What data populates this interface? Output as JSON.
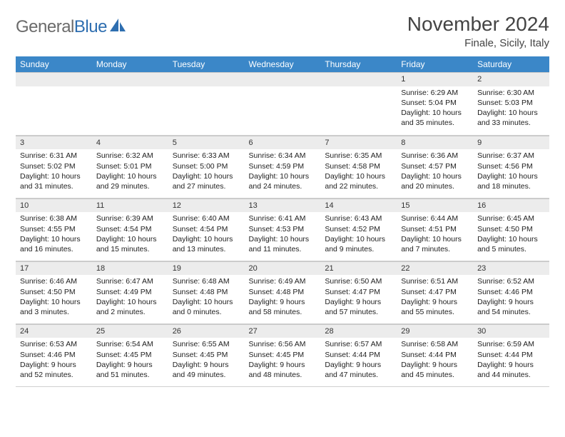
{
  "logo": {
    "text1": "General",
    "text2": "Blue",
    "sail_color": "#2e6eb0"
  },
  "title": "November 2024",
  "subtitle": "Finale, Sicily, Italy",
  "header_bg": "#3b87c8",
  "daynum_bg": "#ececec",
  "font_family": "Arial",
  "cell_fontsize": 10.5,
  "weekdays": [
    "Sunday",
    "Monday",
    "Tuesday",
    "Wednesday",
    "Thursday",
    "Friday",
    "Saturday"
  ],
  "weeks": [
    [
      null,
      null,
      null,
      null,
      null,
      {
        "d": "1",
        "sr": "6:29 AM",
        "ss": "5:04 PM",
        "dl": "10 hours and 35 minutes."
      },
      {
        "d": "2",
        "sr": "6:30 AM",
        "ss": "5:03 PM",
        "dl": "10 hours and 33 minutes."
      }
    ],
    [
      {
        "d": "3",
        "sr": "6:31 AM",
        "ss": "5:02 PM",
        "dl": "10 hours and 31 minutes."
      },
      {
        "d": "4",
        "sr": "6:32 AM",
        "ss": "5:01 PM",
        "dl": "10 hours and 29 minutes."
      },
      {
        "d": "5",
        "sr": "6:33 AM",
        "ss": "5:00 PM",
        "dl": "10 hours and 27 minutes."
      },
      {
        "d": "6",
        "sr": "6:34 AM",
        "ss": "4:59 PM",
        "dl": "10 hours and 24 minutes."
      },
      {
        "d": "7",
        "sr": "6:35 AM",
        "ss": "4:58 PM",
        "dl": "10 hours and 22 minutes."
      },
      {
        "d": "8",
        "sr": "6:36 AM",
        "ss": "4:57 PM",
        "dl": "10 hours and 20 minutes."
      },
      {
        "d": "9",
        "sr": "6:37 AM",
        "ss": "4:56 PM",
        "dl": "10 hours and 18 minutes."
      }
    ],
    [
      {
        "d": "10",
        "sr": "6:38 AM",
        "ss": "4:55 PM",
        "dl": "10 hours and 16 minutes."
      },
      {
        "d": "11",
        "sr": "6:39 AM",
        "ss": "4:54 PM",
        "dl": "10 hours and 15 minutes."
      },
      {
        "d": "12",
        "sr": "6:40 AM",
        "ss": "4:54 PM",
        "dl": "10 hours and 13 minutes."
      },
      {
        "d": "13",
        "sr": "6:41 AM",
        "ss": "4:53 PM",
        "dl": "10 hours and 11 minutes."
      },
      {
        "d": "14",
        "sr": "6:43 AM",
        "ss": "4:52 PM",
        "dl": "10 hours and 9 minutes."
      },
      {
        "d": "15",
        "sr": "6:44 AM",
        "ss": "4:51 PM",
        "dl": "10 hours and 7 minutes."
      },
      {
        "d": "16",
        "sr": "6:45 AM",
        "ss": "4:50 PM",
        "dl": "10 hours and 5 minutes."
      }
    ],
    [
      {
        "d": "17",
        "sr": "6:46 AM",
        "ss": "4:50 PM",
        "dl": "10 hours and 3 minutes."
      },
      {
        "d": "18",
        "sr": "6:47 AM",
        "ss": "4:49 PM",
        "dl": "10 hours and 2 minutes."
      },
      {
        "d": "19",
        "sr": "6:48 AM",
        "ss": "4:48 PM",
        "dl": "10 hours and 0 minutes."
      },
      {
        "d": "20",
        "sr": "6:49 AM",
        "ss": "4:48 PM",
        "dl": "9 hours and 58 minutes."
      },
      {
        "d": "21",
        "sr": "6:50 AM",
        "ss": "4:47 PM",
        "dl": "9 hours and 57 minutes."
      },
      {
        "d": "22",
        "sr": "6:51 AM",
        "ss": "4:47 PM",
        "dl": "9 hours and 55 minutes."
      },
      {
        "d": "23",
        "sr": "6:52 AM",
        "ss": "4:46 PM",
        "dl": "9 hours and 54 minutes."
      }
    ],
    [
      {
        "d": "24",
        "sr": "6:53 AM",
        "ss": "4:46 PM",
        "dl": "9 hours and 52 minutes."
      },
      {
        "d": "25",
        "sr": "6:54 AM",
        "ss": "4:45 PM",
        "dl": "9 hours and 51 minutes."
      },
      {
        "d": "26",
        "sr": "6:55 AM",
        "ss": "4:45 PM",
        "dl": "9 hours and 49 minutes."
      },
      {
        "d": "27",
        "sr": "6:56 AM",
        "ss": "4:45 PM",
        "dl": "9 hours and 48 minutes."
      },
      {
        "d": "28",
        "sr": "6:57 AM",
        "ss": "4:44 PM",
        "dl": "9 hours and 47 minutes."
      },
      {
        "d": "29",
        "sr": "6:58 AM",
        "ss": "4:44 PM",
        "dl": "9 hours and 45 minutes."
      },
      {
        "d": "30",
        "sr": "6:59 AM",
        "ss": "4:44 PM",
        "dl": "9 hours and 44 minutes."
      }
    ]
  ],
  "labels": {
    "sunrise": "Sunrise:",
    "sunset": "Sunset:",
    "daylight": "Daylight:"
  }
}
